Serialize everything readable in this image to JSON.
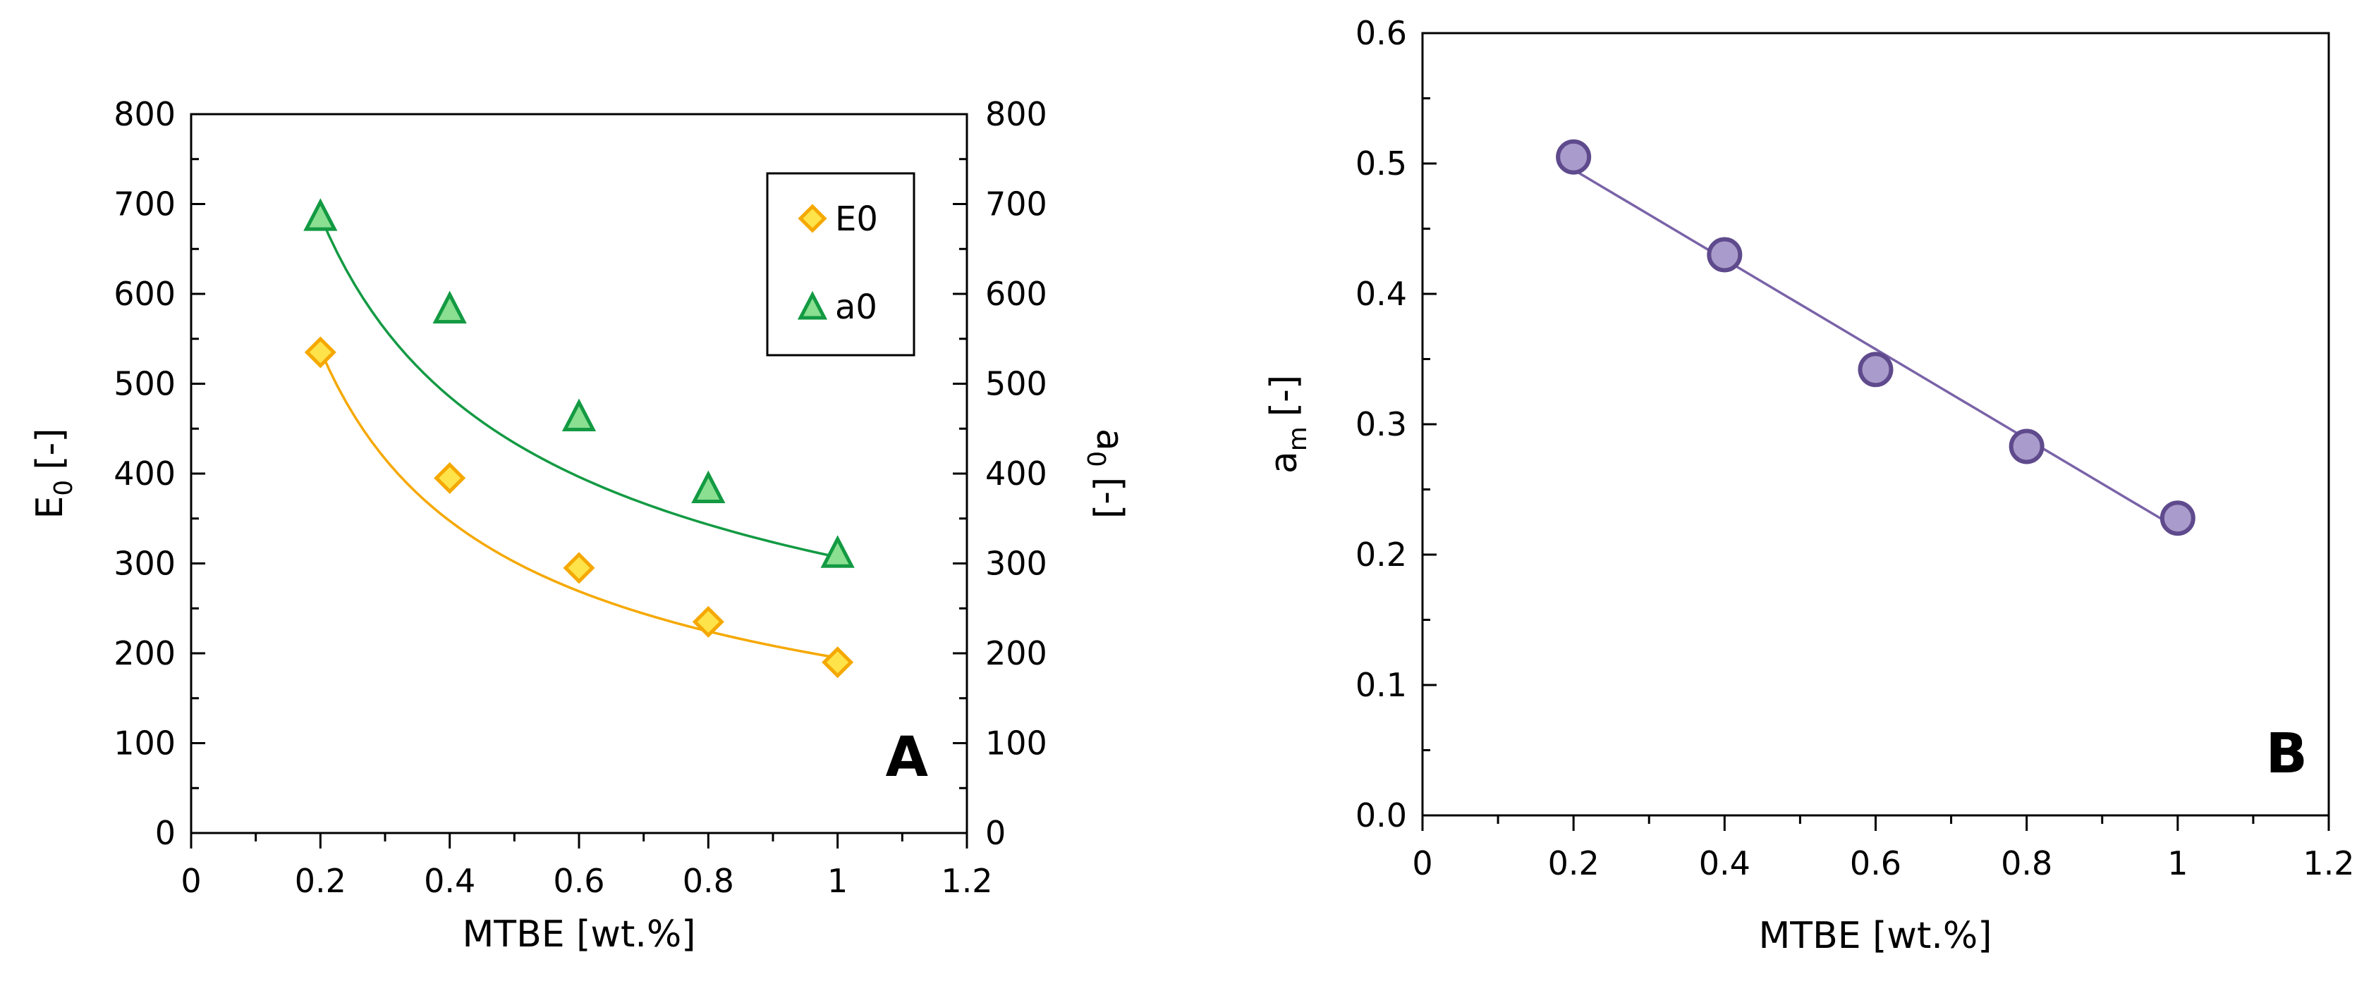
{
  "chart_data": [
    {
      "type": "scatter",
      "panel_label": "A",
      "xlabel": "MTBE [wt.%]",
      "ylabel_left": {
        "symbol": "E",
        "subscript": "0",
        "unit": "[-]"
      },
      "ylabel_right": {
        "symbol": "a",
        "subscript": "0",
        "unit": "[-]"
      },
      "xlim": [
        0,
        1.2
      ],
      "ylim": [
        0,
        800
      ],
      "x_ticks": [
        "0",
        "0.2",
        "0.4",
        "0.6",
        "0.8",
        "1",
        "1.2"
      ],
      "y_ticks": [
        "0",
        "100",
        "200",
        "300",
        "400",
        "500",
        "600",
        "700",
        "800"
      ],
      "grid": false,
      "legend_position": "top-right",
      "series": [
        {
          "name": "E0",
          "marker": "diamond",
          "color": "#F5A800",
          "fill": "#FFE34A",
          "line_color": "#F5A800",
          "x": [
            0.2,
            0.4,
            0.6,
            0.8,
            1.0
          ],
          "values": [
            535,
            395,
            295,
            235,
            190
          ],
          "fit": {
            "kind": "power",
            "a": 195,
            "b": -0.63
          }
        },
        {
          "name": "a0",
          "marker": "triangle",
          "color": "#139A43",
          "fill": "#8ADF91",
          "line_color": "#139A43",
          "x": [
            0.2,
            0.4,
            0.6,
            0.8,
            1.0
          ],
          "values": [
            685,
            582,
            462,
            382,
            310
          ],
          "fit": {
            "kind": "power",
            "a": 307,
            "b": -0.5
          }
        }
      ]
    },
    {
      "type": "scatter",
      "panel_label": "B",
      "xlabel": "MTBE [wt.%]",
      "ylabel": {
        "symbol": "a",
        "subscript": "m",
        "unit": "[-]"
      },
      "xlim": [
        0,
        1.2
      ],
      "ylim": [
        0,
        0.6
      ],
      "x_ticks": [
        "0",
        "0.2",
        "0.4",
        "0.6",
        "0.8",
        "1",
        "1.2"
      ],
      "y_ticks": [
        "0.0",
        "0.1",
        "0.2",
        "0.3",
        "0.4",
        "0.5",
        "0.6"
      ],
      "grid": false,
      "series": [
        {
          "name": "am",
          "marker": "circle",
          "color": "#5E4A8C",
          "fill": "#A99BCB",
          "line_color": "#7A63A8",
          "x": [
            0.2,
            0.4,
            0.6,
            0.8,
            1.0
          ],
          "values": [
            0.505,
            0.43,
            0.342,
            0.283,
            0.228
          ],
          "fit": {
            "kind": "linear",
            "slope": -0.344,
            "intercept": 0.564
          }
        }
      ]
    }
  ]
}
